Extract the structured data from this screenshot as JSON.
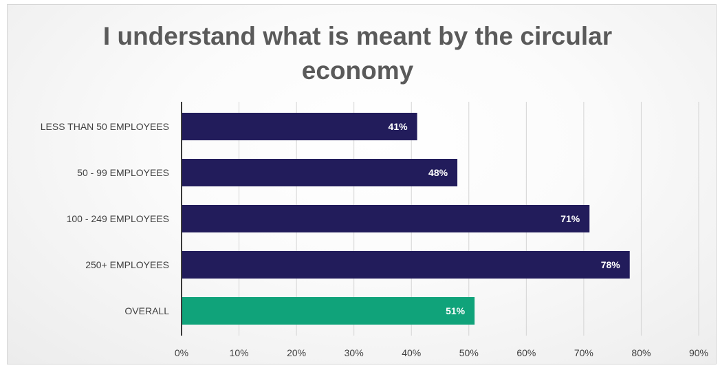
{
  "chart_data": {
    "type": "bar",
    "orientation": "horizontal",
    "title": "I understand what is meant by the circular economy",
    "categories": [
      "LESS THAN 50 EMPLOYEES",
      "50 - 99 EMPLOYEES",
      "100 - 249 EMPLOYEES",
      "250+ EMPLOYEES",
      "OVERALL"
    ],
    "values": [
      41,
      48,
      71,
      78,
      51
    ],
    "data_labels": [
      "41%",
      "48%",
      "71%",
      "78%",
      "51%"
    ],
    "xlim": [
      0,
      90
    ],
    "x_ticks": [
      "0%",
      "10%",
      "20%",
      "30%",
      "40%",
      "50%",
      "60%",
      "70%",
      "80%",
      "90%"
    ],
    "grid": true,
    "colors": {
      "bar": "#221C5B",
      "overall_bar": "#10A37A",
      "title": "#5a5a5a",
      "label": "#404040",
      "gridline": "#d4d4d4"
    }
  }
}
